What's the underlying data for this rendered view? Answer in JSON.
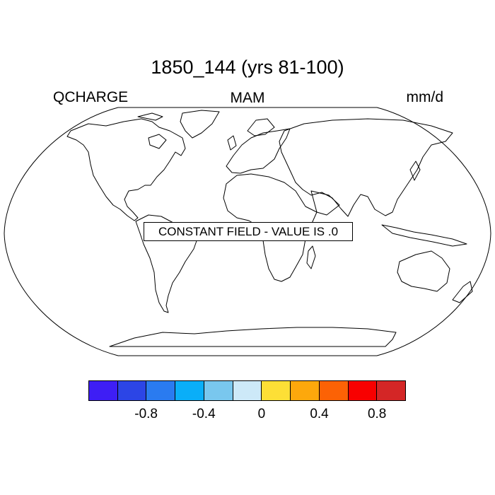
{
  "title": "1850_144 (yrs 81-100)",
  "left_label": "QCHARGE",
  "center_label": "MAM",
  "right_label": "mm/d",
  "annotation": "CONSTANT FIELD - VALUE IS .0",
  "colorbar": {
    "colors": [
      "#3e1ef5",
      "#2c45e6",
      "#2a7bf0",
      "#0aaef8",
      "#79c7ee",
      "#cde9f8",
      "#fddf36",
      "#fda80c",
      "#fc6205",
      "#f80000",
      "#d42626"
    ],
    "labels": [
      "-0.8",
      "-0.4",
      "0",
      "0.4",
      "0.8"
    ]
  }
}
